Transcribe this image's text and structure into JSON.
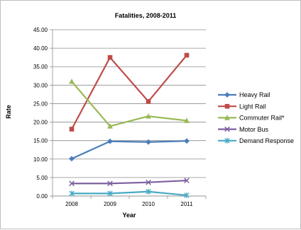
{
  "chart_data": {
    "type": "line",
    "title": "Fatalities, 2008-2011",
    "xlabel": "Year",
    "ylabel": "Rate",
    "categories": [
      "2008",
      "2009",
      "2010",
      "2011"
    ],
    "ylim": [
      0,
      45
    ],
    "yticks": [
      "0.00",
      "5.00",
      "10.00",
      "15.00",
      "20.00",
      "25.00",
      "30.00",
      "35.00",
      "40.00",
      "45.00"
    ],
    "grid": true,
    "legend_position": "right",
    "series": [
      {
        "name": "Heavy Rail",
        "values": [
          10.1,
          14.8,
          14.6,
          14.9
        ],
        "color": "#4a7ebb",
        "marker": "diamond"
      },
      {
        "name": "Light Rail",
        "values": [
          18.1,
          37.5,
          25.6,
          38.1
        ],
        "color": "#be4b48",
        "marker": "square"
      },
      {
        "name": "Commuter Rail*",
        "values": [
          31.0,
          18.9,
          21.6,
          20.4
        ],
        "color": "#98b954",
        "marker": "triangle"
      },
      {
        "name": "Motor Bus",
        "values": [
          3.4,
          3.4,
          3.7,
          4.2
        ],
        "color": "#7d60a0",
        "marker": "x"
      },
      {
        "name": "Demand Response",
        "values": [
          0.7,
          0.7,
          1.2,
          0.2
        ],
        "color": "#46aac5",
        "marker": "star"
      }
    ]
  }
}
